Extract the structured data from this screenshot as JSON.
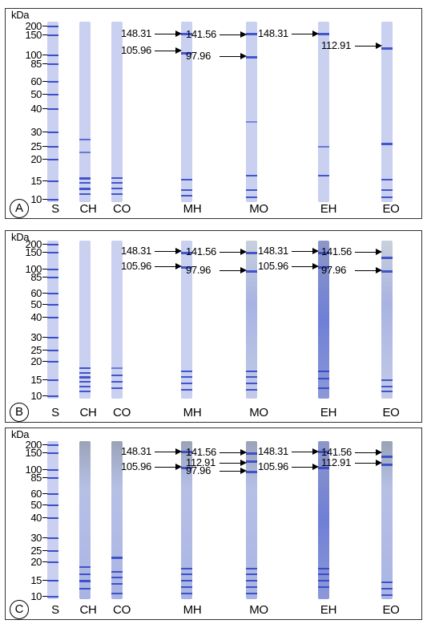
{
  "unit": "kDa",
  "markers": [
    "200",
    "150",
    "100",
    "85",
    "60",
    "50",
    "40",
    "30",
    "25",
    "20",
    "15",
    "10"
  ],
  "panels": [
    {
      "label": "A",
      "lanes": [
        "S",
        "CH",
        "CO",
        "MH",
        "MO",
        "EH",
        "EO"
      ],
      "annotations": [
        {
          "lane": "MH",
          "text": "148.31"
        },
        {
          "lane": "MH",
          "text": "105.96"
        },
        {
          "lane": "MO",
          "text": "141.56"
        },
        {
          "lane": "MO",
          "text": "97.96"
        },
        {
          "lane": "EH",
          "text": "148.31"
        },
        {
          "lane": "EO",
          "text": "112.91"
        }
      ]
    },
    {
      "label": "B",
      "lanes": [
        "S",
        "CH",
        "CO",
        "MH",
        "MO",
        "EH",
        "EO"
      ],
      "annotations": [
        {
          "lane": "MH",
          "text": "148.31"
        },
        {
          "lane": "MH",
          "text": "105.96"
        },
        {
          "lane": "MO",
          "text": "141.56"
        },
        {
          "lane": "MO",
          "text": "97.96"
        },
        {
          "lane": "EH",
          "text": "148.31"
        },
        {
          "lane": "EH",
          "text": "105.96"
        },
        {
          "lane": "EO",
          "text": "141.56"
        },
        {
          "lane": "EO",
          "text": "97.96"
        }
      ]
    },
    {
      "label": "C",
      "lanes": [
        "S",
        "CH",
        "CO",
        "MH",
        "MO",
        "EH",
        "EO"
      ],
      "annotations": [
        {
          "lane": "MH",
          "text": "148.31"
        },
        {
          "lane": "MH",
          "text": "105.96"
        },
        {
          "lane": "MO",
          "text": "141.56"
        },
        {
          "lane": "MO",
          "text": "112.91"
        },
        {
          "lane": "MO",
          "text": "97.96"
        },
        {
          "lane": "EH",
          "text": "148.31"
        },
        {
          "lane": "EH",
          "text": "105.96"
        },
        {
          "lane": "EO",
          "text": "141.56"
        },
        {
          "lane": "EO",
          "text": "112.91"
        }
      ]
    }
  ],
  "colors": {
    "band": "#2b3fc4",
    "lane_light": "#c9d0f0",
    "lane_mid": "#a9b4e6",
    "lane_gray": "#9aa3b8"
  }
}
